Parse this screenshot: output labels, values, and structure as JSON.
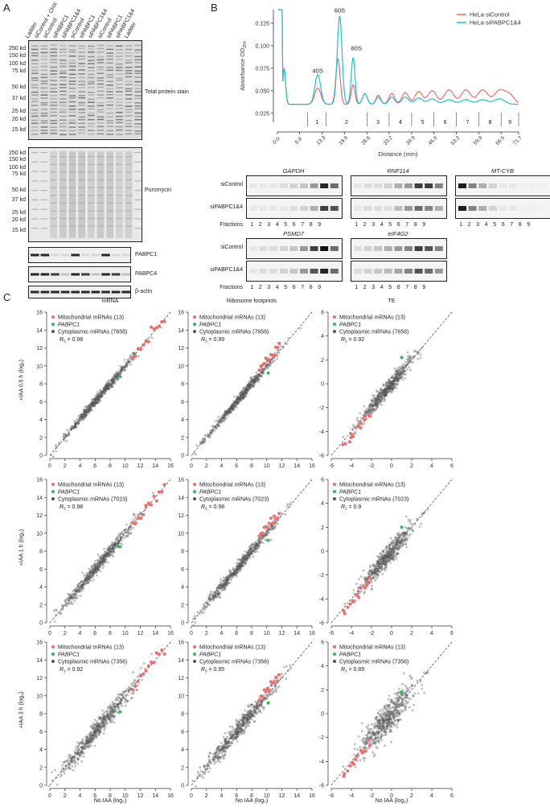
{
  "panelA": {
    "letter": "A",
    "lanes": [
      "Ladder",
      "siControl + CHX",
      "siControl",
      "siPABPC1",
      "siPABPC1&4",
      "siControl",
      "siPABPC1",
      "siPABPC1&4",
      "siControl",
      "siPABPC1",
      "siPABPC1&4",
      "Ladder"
    ],
    "markers_top": [
      "250 kd",
      "150 kd",
      "100 kd",
      "75 kd",
      "50 kd",
      "37 kd",
      "25 kd",
      "20 kd",
      "15 kd"
    ],
    "markers_mid": [
      "250 kd",
      "150 kd",
      "100 kd",
      "75 kd",
      "50 kd",
      "37 kd",
      "25 kd",
      "20 kd",
      "15 kd"
    ],
    "label_total": "Total protein stain",
    "label_puro": "Puromycin",
    "label_pabpc1": "PABPC1",
    "label_pabpc4": "PABPC4",
    "label_actin": "β-actin"
  },
  "panelB": {
    "letter": "B",
    "ylabel": "Absorbance OD",
    "ylabel_sub": "254",
    "xlabel": "Distance (mm)",
    "yticks": [
      "0.025",
      "0.050",
      "0.075",
      "0.100",
      "0.125"
    ],
    "xticks": [
      "0.0",
      "6.6",
      "13.3",
      "19.9",
      "26.6",
      "33.2",
      "39.9",
      "46.5",
      "53.2",
      "59.9",
      "66.5",
      "71.7"
    ],
    "peaks": [
      "40S",
      "60S",
      "80S"
    ],
    "fractions": [
      "1",
      "2",
      "3",
      "4",
      "5",
      "6",
      "7",
      "8",
      "9"
    ],
    "legend": [
      {
        "name": "HeLa siControl",
        "color": "#f36b6b"
      },
      {
        "name": "HeLa siPABPC1&4",
        "color": "#1fc3c7"
      }
    ],
    "genes": [
      "GAPDH",
      "RNF114",
      "MT-CYB",
      "PSMD7",
      "eIF4G2"
    ],
    "rows": [
      "siControl",
      "siPABPC1&4"
    ],
    "fractions_label": "Fractions"
  },
  "panelC": {
    "letter": "C",
    "col_titles": [
      "mRNA",
      "Ribosome footprints",
      "TE"
    ],
    "row_ylabels": [
      "+IAA 0.5 h (log₂)",
      "+IAA 1 h (log₂)",
      "+IAA 3 h (log₂)"
    ],
    "xlabel": "No IAA (log₂)",
    "legend_mito": "Mitochondrial mRNAs (13)",
    "legend_pabpc1": "PABPC1",
    "legend_cyto": [
      "Cytoplasmic mRNAs (7658)",
      "Cytoplasmic mRNAs (7023)",
      "Cytoplasmic mRNAs (7356)"
    ],
    "rs_prefix": "R",
    "rs_sub": "s",
    "rs_values": [
      [
        "0.98",
        "0.99",
        "0.92"
      ],
      [
        "0.98",
        "0.98",
        "0.9"
      ],
      [
        "0.92",
        "0.95",
        "0.89"
      ]
    ],
    "ticks_main": [
      "0",
      "2",
      "4",
      "6",
      "8",
      "10",
      "12",
      "14",
      "16"
    ],
    "ticks_te": [
      "-6",
      "-4",
      "-2",
      "0",
      "2",
      "4",
      "6"
    ],
    "colors": {
      "mito": "#f36b6b",
      "pabpc1": "#2dbb55",
      "cyto": "#555555"
    }
  }
}
